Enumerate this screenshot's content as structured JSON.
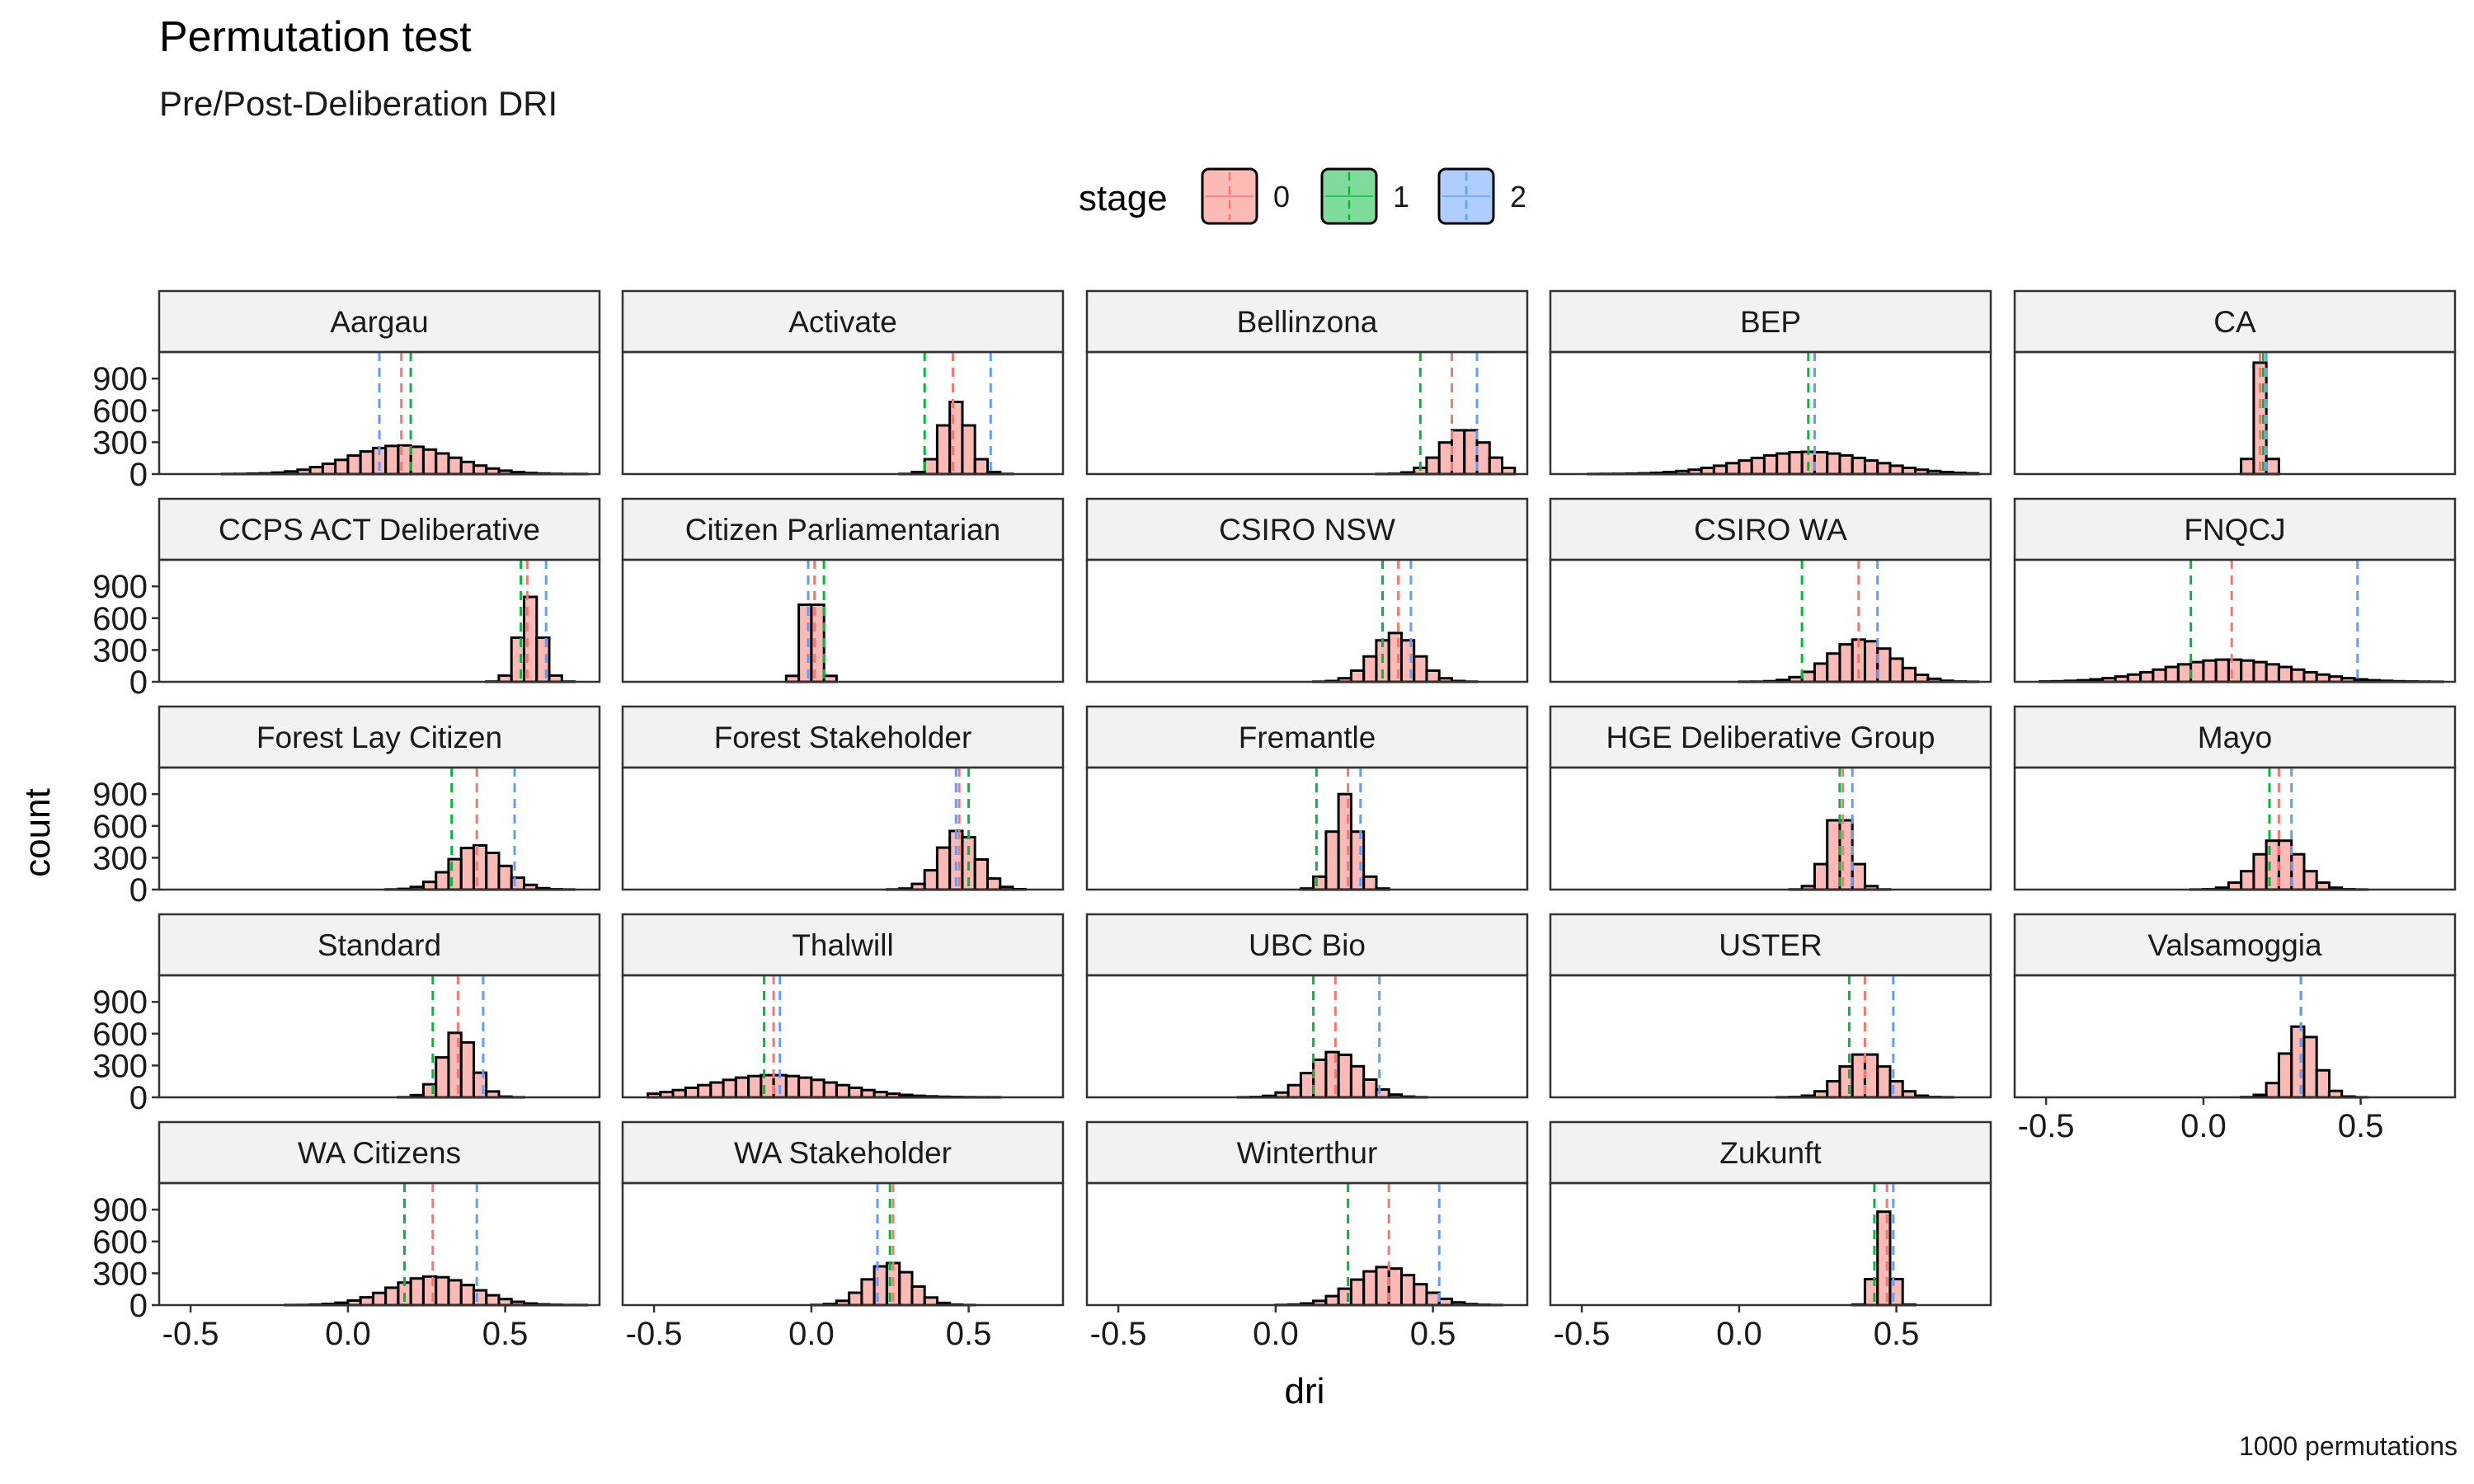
{
  "chart_data": {
    "type": "histogram",
    "title": "Permutation test",
    "subtitle": "Pre/Post-Deliberation DRI",
    "caption": "1000 permutations",
    "xlabel": "dri",
    "ylabel": "count",
    "xlim": [
      -0.6,
      0.8
    ],
    "ylim": [
      0,
      1150
    ],
    "x_ticks": [
      -0.5,
      0.0,
      0.5
    ],
    "x_tick_labels": [
      "-0.5",
      "0.0",
      "0.5"
    ],
    "y_ticks": [
      0,
      300,
      600,
      900
    ],
    "y_tick_labels": [
      "0",
      "300",
      "600",
      "900"
    ],
    "bin_width": 0.04,
    "bin_start": -0.52,
    "legend": {
      "title": "stage",
      "position": "top",
      "entries": [
        {
          "label": "0",
          "color": "#F8766D"
        },
        {
          "label": "1",
          "color": "#00BA38"
        },
        {
          "label": "2",
          "color": "#619CFF"
        }
      ]
    },
    "fill_color": "#F8766D",
    "panels": [
      {
        "name": "Aargau",
        "stage_lines": [
          0.17,
          0.2,
          0.1
        ],
        "hist": {
          "center": 0.17,
          "sd": 0.16,
          "peak": 270
        }
      },
      {
        "name": "Activate",
        "stage_lines": [
          0.45,
          0.36,
          0.57
        ],
        "hist": {
          "center": 0.46,
          "sd": 0.045,
          "peak": 680
        }
      },
      {
        "name": "Bellinzona",
        "stage_lines": [
          0.56,
          0.46,
          0.64
        ],
        "hist": {
          "center": 0.6,
          "sd": 0.07,
          "peak": 430
        }
      },
      {
        "name": "BEP",
        "stage_lines": [
          0.24,
          0.22,
          0.24
        ],
        "hist": {
          "center": 0.22,
          "sd": 0.2,
          "peak": 210
        }
      },
      {
        "name": "CA",
        "stage_lines": [
          0.18,
          0.19,
          0.2
        ],
        "hist": {
          "center": 0.18,
          "sd": 0.02,
          "peak": 1050
        }
      },
      {
        "name": "CCPS ACT Deliberative",
        "stage_lines": [
          0.57,
          0.55,
          0.63
        ],
        "hist": {
          "center": 0.58,
          "sd": 0.035,
          "peak": 800
        }
      },
      {
        "name": "Citizen Parliamentarian",
        "stage_lines": [
          0.01,
          0.04,
          -0.01
        ],
        "hist": {
          "center": 0.0,
          "sd": 0.025,
          "peak": 1000
        }
      },
      {
        "name": "CSIRO NSW",
        "stage_lines": [
          0.39,
          0.34,
          0.43
        ],
        "hist": {
          "center": 0.38,
          "sd": 0.07,
          "peak": 460
        }
      },
      {
        "name": "CSIRO WA",
        "stage_lines": [
          0.38,
          0.2,
          0.44
        ],
        "hist": {
          "center": 0.39,
          "sd": 0.1,
          "peak": 400
        }
      },
      {
        "name": "FNQCJ",
        "stage_lines": [
          0.09,
          -0.04,
          0.49
        ],
        "hist": {
          "center": 0.08,
          "sd": 0.2,
          "peak": 210
        }
      },
      {
        "name": "Forest Lay Citizen",
        "stage_lines": [
          0.41,
          0.33,
          0.53
        ],
        "hist": {
          "center": 0.41,
          "sd": 0.08,
          "peak": 420
        }
      },
      {
        "name": "Forest Stakeholder",
        "stage_lines": [
          0.47,
          0.5,
          0.46
        ],
        "hist": {
          "center": 0.47,
          "sd": 0.06,
          "peak": 560
        }
      },
      {
        "name": "Fremantle",
        "stage_lines": [
          0.23,
          0.13,
          0.27
        ],
        "hist": {
          "center": 0.22,
          "sd": 0.04,
          "peak": 900
        }
      },
      {
        "name": "HGE Deliberative Group",
        "stage_lines": [
          0.33,
          0.32,
          0.36
        ],
        "hist": {
          "center": 0.32,
          "sd": 0.04,
          "peak": 740
        }
      },
      {
        "name": "Mayo",
        "stage_lines": [
          0.24,
          0.21,
          0.28
        ],
        "hist": {
          "center": 0.24,
          "sd": 0.07,
          "peak": 480
        }
      },
      {
        "name": "Standard",
        "stage_lines": [
          0.35,
          0.27,
          0.43
        ],
        "hist": {
          "center": 0.35,
          "sd": 0.05,
          "peak": 620
        }
      },
      {
        "name": "Thalwill",
        "stage_lines": [
          -0.12,
          -0.15,
          -0.1
        ],
        "hist": {
          "center": -0.12,
          "sd": 0.2,
          "peak": 210
        }
      },
      {
        "name": "UBC Bio",
        "stage_lines": [
          0.19,
          0.12,
          0.33
        ],
        "hist": {
          "center": 0.19,
          "sd": 0.08,
          "peak": 430
        }
      },
      {
        "name": "USTER",
        "stage_lines": [
          0.4,
          0.35,
          0.49
        ],
        "hist": {
          "center": 0.4,
          "sd": 0.07,
          "peak": 420
        }
      },
      {
        "name": "Valsamoggia",
        "stage_lines": [
          0.31,
          0.31,
          0.31
        ],
        "hist": {
          "center": 0.31,
          "sd": 0.05,
          "peak": 680
        }
      },
      {
        "name": "WA Citizens",
        "stage_lines": [
          0.27,
          0.18,
          0.41
        ],
        "hist": {
          "center": 0.27,
          "sd": 0.13,
          "peak": 270
        }
      },
      {
        "name": "WA Stakeholder",
        "stage_lines": [
          0.26,
          0.25,
          0.21
        ],
        "hist": {
          "center": 0.25,
          "sd": 0.07,
          "peak": 400
        }
      },
      {
        "name": "Winterthur",
        "stage_lines": [
          0.36,
          0.23,
          0.52
        ],
        "hist": {
          "center": 0.35,
          "sd": 0.1,
          "peak": 360
        }
      },
      {
        "name": "Zukunft",
        "stage_lines": [
          0.47,
          0.43,
          0.49
        ],
        "hist": {
          "center": 0.46,
          "sd": 0.025,
          "peak": 880
        }
      }
    ]
  }
}
